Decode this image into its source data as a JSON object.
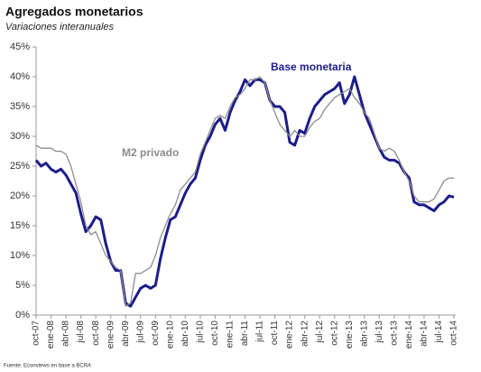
{
  "chart_data": {
    "type": "line",
    "title": "Agregados monetarios",
    "subtitle": "Variaciones interanuales",
    "source": "Fuente: Econviews en base a BCRA",
    "categories": [
      "oct-07",
      null,
      null,
      "ene-08",
      null,
      null,
      "abr-08",
      null,
      null,
      "jul-08",
      null,
      null,
      "oct-08",
      null,
      null,
      "ene-09",
      null,
      null,
      "abr-09",
      null,
      null,
      "jul-09",
      null,
      null,
      "oct-09",
      null,
      null,
      "ene-10",
      null,
      null,
      "abr-10",
      null,
      null,
      "jul-10",
      null,
      null,
      "oct-10",
      null,
      null,
      "ene-11",
      null,
      null,
      "abr-11",
      null,
      null,
      "jul-11",
      null,
      null,
      "oct-11",
      null,
      null,
      "ene-12",
      null,
      null,
      "abr-12",
      null,
      null,
      "jul-12",
      null,
      null,
      "oct-12",
      null,
      null,
      "ene-13",
      null,
      null,
      "abr-13",
      null,
      null,
      "jul-13",
      null,
      null,
      "oct-13",
      null,
      null,
      "ene-14",
      null,
      null,
      "abr-14",
      null,
      null,
      "jul-14",
      null,
      null,
      "oct-14"
    ],
    "series": [
      {
        "name": "Base monetaria",
        "color": "#1c1c8a",
        "values": [
          26,
          25,
          25.5,
          24.5,
          24,
          24.5,
          23.5,
          22,
          20.5,
          17,
          14,
          15,
          16.5,
          16,
          12,
          9,
          7.5,
          7.5,
          2,
          1.5,
          3,
          4.5,
          5,
          4.5,
          5,
          9.5,
          13,
          16,
          16.5,
          18.5,
          20.5,
          22,
          23,
          26,
          28.5,
          30,
          32,
          33,
          31,
          34,
          36,
          37.5,
          39.5,
          38.5,
          39.5,
          39.5,
          39,
          36,
          35,
          35,
          34,
          29,
          28.5,
          31,
          30.5,
          33,
          35,
          36,
          37,
          37.5,
          38,
          39,
          35.5,
          37,
          40,
          37,
          34,
          32,
          30,
          28,
          26.5,
          26,
          26,
          25.5,
          24,
          23,
          19,
          18.5,
          18.5,
          18,
          17.5,
          18.5,
          19,
          20,
          19.8
        ]
      },
      {
        "name": "M2 privado",
        "color": "#8c8c8c",
        "values": [
          28.5,
          28,
          28,
          28,
          27.5,
          27.5,
          27,
          25,
          22,
          19,
          15,
          13.5,
          14,
          12,
          10,
          9,
          8,
          7.5,
          1.5,
          2,
          7,
          7,
          7.5,
          8,
          10,
          13,
          15,
          17,
          18.5,
          21,
          22,
          23,
          24,
          27,
          29,
          31,
          33,
          33.5,
          33,
          35,
          36.5,
          37,
          38,
          39.5,
          39.5,
          40,
          39,
          36,
          34,
          32,
          31,
          30,
          31,
          30,
          30,
          31.5,
          32.5,
          33,
          34.5,
          35.5,
          36.5,
          37,
          37.5,
          38,
          36.5,
          35.5,
          34,
          33,
          30.5,
          28,
          27.5,
          28,
          27.5,
          26,
          24,
          22.5,
          20,
          19,
          19,
          19,
          19.5,
          21,
          22.5,
          23,
          23
        ]
      }
    ],
    "ylim": [
      0,
      45
    ],
    "yticks": [
      {
        "value": 0,
        "label": "0%"
      },
      {
        "value": 5,
        "label": "5%"
      },
      {
        "value": 10,
        "label": "10%"
      },
      {
        "value": 15,
        "label": "15%"
      },
      {
        "value": 20,
        "label": "20%"
      },
      {
        "value": 25,
        "label": "25%"
      },
      {
        "value": 30,
        "label": "30%"
      },
      {
        "value": 35,
        "label": "35%"
      },
      {
        "value": 40,
        "label": "40%"
      },
      {
        "value": 45,
        "label": "45%"
      }
    ],
    "grid": false
  }
}
